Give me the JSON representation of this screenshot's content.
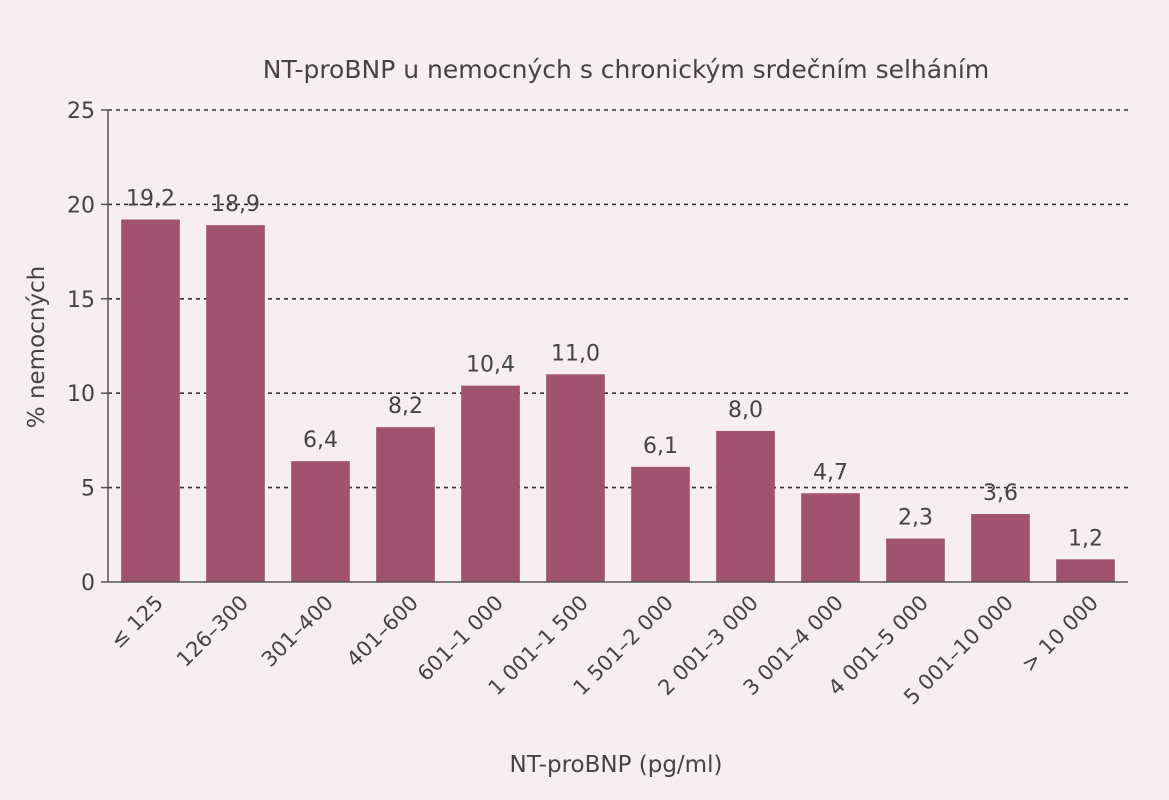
{
  "chart_data": {
    "type": "bar",
    "title": "NT-proBNP u nemocných s chronickým srdečním selháním",
    "xlabel": "NT-proBNP (pg/ml)",
    "ylabel": "% nemocných",
    "ylim": [
      0,
      25
    ],
    "yticks": [
      0,
      5,
      10,
      15,
      20,
      25
    ],
    "grid": true,
    "categories": [
      "≤ 125",
      "126–300",
      "301–400",
      "401–600",
      "601–1 000",
      "1 001–1 500",
      "1 501–2 000",
      "2 001–3 000",
      "3 001–4 000",
      "4 001–5 000",
      "5 001–10 000",
      "> 10 000"
    ],
    "values": [
      19.2,
      18.9,
      6.4,
      8.2,
      10.4,
      11.0,
      6.1,
      8.0,
      4.7,
      2.3,
      3.6,
      1.2
    ],
    "value_labels": [
      "19,2",
      "18,9",
      "6,4",
      "8,2",
      "10,4",
      "11,0",
      "6,1",
      "8,0",
      "4,7",
      "2,3",
      "3,6",
      "1,2"
    ],
    "bar_color": "#a0526f",
    "background_color": "#f7eef1"
  }
}
